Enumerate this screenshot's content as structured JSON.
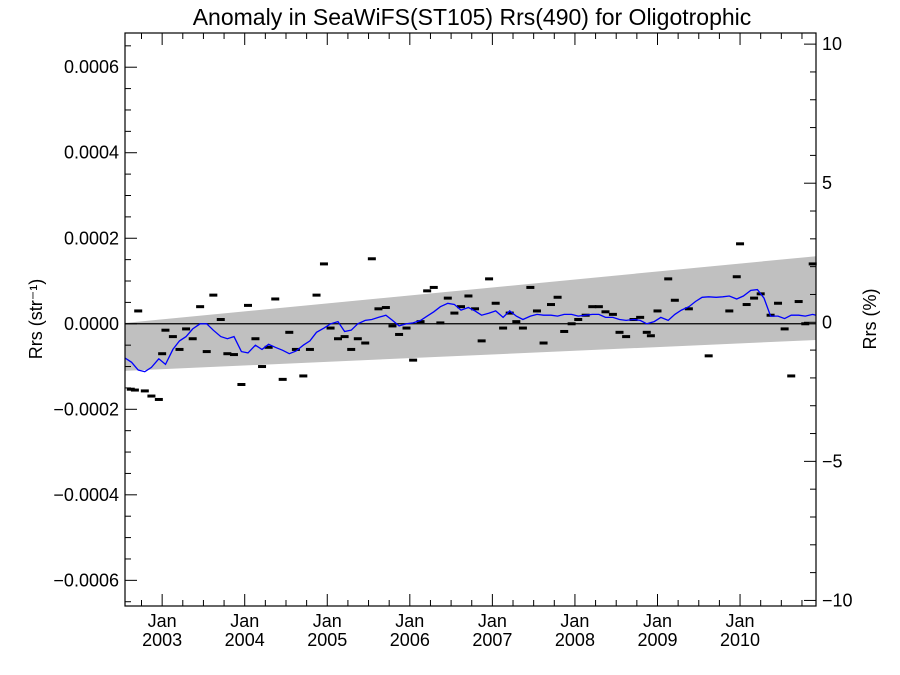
{
  "chart_data": {
    "type": "scatter",
    "title": "Anomaly in SeaWiFS(ST105) Rrs(490) for Oligotrophic",
    "ylabel_left": "Rrs (str⁻¹)",
    "ylabel_right": "Rrs (%)",
    "xlim": [
      2002.55,
      2010.92
    ],
    "ylim_left": [
      -0.00066,
      0.00068
    ],
    "ylim_right": [
      -10.2,
      10.4
    ],
    "x_ticks": [
      {
        "x": 2003.0,
        "top": "Jan",
        "bottom": "2003"
      },
      {
        "x": 2004.0,
        "top": "Jan",
        "bottom": "2004"
      },
      {
        "x": 2005.0,
        "top": "Jan",
        "bottom": "2005"
      },
      {
        "x": 2006.0,
        "top": "Jan",
        "bottom": "2006"
      },
      {
        "x": 2007.0,
        "top": "Jan",
        "bottom": "2007"
      },
      {
        "x": 2008.0,
        "top": "Jan",
        "bottom": "2008"
      },
      {
        "x": 2009.0,
        "top": "Jan",
        "bottom": "2009"
      },
      {
        "x": 2010.0,
        "top": "Jan",
        "bottom": "2010"
      }
    ],
    "y_ticks_left": [
      {
        "v": 0.0006,
        "label": "0.0006"
      },
      {
        "v": 0.0004,
        "label": "0.0004"
      },
      {
        "v": 0.0002,
        "label": "0.0002"
      },
      {
        "v": 0.0,
        "label": "0.0000"
      },
      {
        "v": -0.0002,
        "label": "−0.0002"
      },
      {
        "v": -0.0004,
        "label": "−0.0004"
      },
      {
        "v": -0.0006,
        "label": "−0.0006"
      }
    ],
    "y_ticks_right": [
      {
        "v": 10,
        "label": "10"
      },
      {
        "v": 5,
        "label": "5"
      },
      {
        "v": 0,
        "label": "0"
      },
      {
        "v": -5,
        "label": "−5"
      },
      {
        "v": -10,
        "label": "−10"
      }
    ],
    "confidence_band": {
      "x": [
        2002.55,
        2010.92
      ],
      "upper": [
        2e-06,
        0.000158
      ],
      "lower": [
        -0.00011,
        -3.8e-05
      ]
    },
    "zero_line": 0,
    "monthly_points": [
      [
        2002.62,
        -0.000153
      ],
      [
        2002.67,
        -0.000155
      ],
      [
        2002.71,
        3e-05
      ],
      [
        2002.79,
        -0.000157
      ],
      [
        2002.87,
        -0.000169
      ],
      [
        2002.96,
        -0.000177
      ],
      [
        2003.0,
        -7e-05
      ],
      [
        2003.04,
        -1.5e-05
      ],
      [
        2003.13,
        -3e-05
      ],
      [
        2003.21,
        -6e-05
      ],
      [
        2003.29,
        -1.2e-05
      ],
      [
        2003.37,
        -3.5e-05
      ],
      [
        2003.46,
        4e-05
      ],
      [
        2003.54,
        -6.5e-05
      ],
      [
        2003.62,
        6.7e-05
      ],
      [
        2003.71,
        1e-05
      ],
      [
        2003.79,
        -7e-05
      ],
      [
        2003.87,
        -7.2e-05
      ],
      [
        2003.96,
        -0.000142
      ],
      [
        2004.04,
        4.3e-05
      ],
      [
        2004.13,
        -3.5e-05
      ],
      [
        2004.21,
        -0.0001
      ],
      [
        2004.29,
        -5.5e-05
      ],
      [
        2004.37,
        5.8e-05
      ],
      [
        2004.46,
        -0.00013
      ],
      [
        2004.54,
        -2e-05
      ],
      [
        2004.62,
        -6e-05
      ],
      [
        2004.71,
        -0.000122
      ],
      [
        2004.79,
        -6e-05
      ],
      [
        2004.87,
        6.7e-05
      ],
      [
        2004.96,
        0.00014
      ],
      [
        2005.04,
        -1e-05
      ],
      [
        2005.13,
        -3.5e-05
      ],
      [
        2005.21,
        -3e-05
      ],
      [
        2005.29,
        -6e-05
      ],
      [
        2005.37,
        -3.5e-05
      ],
      [
        2005.46,
        -4.5e-05
      ],
      [
        2005.54,
        0.000152
      ],
      [
        2005.62,
        3.5e-05
      ],
      [
        2005.71,
        3.8e-05
      ],
      [
        2005.79,
        -5e-06
      ],
      [
        2005.87,
        -2.5e-05
      ],
      [
        2005.96,
        -1e-05
      ],
      [
        2006.04,
        -8.5e-05
      ],
      [
        2006.13,
        5e-06
      ],
      [
        2006.21,
        7.7e-05
      ],
      [
        2006.29,
        8.5e-05
      ],
      [
        2006.37,
        2e-06
      ],
      [
        2006.46,
        6e-05
      ],
      [
        2006.54,
        2.5e-05
      ],
      [
        2006.62,
        4e-05
      ],
      [
        2006.71,
        6.5e-05
      ],
      [
        2006.79,
        3.5e-05
      ],
      [
        2006.87,
        -4e-05
      ],
      [
        2006.96,
        0.000105
      ],
      [
        2007.04,
        4.8e-05
      ],
      [
        2007.13,
        -1e-05
      ],
      [
        2007.21,
        2.5e-05
      ],
      [
        2007.29,
        5e-06
      ],
      [
        2007.37,
        -1e-05
      ],
      [
        2007.46,
        8.5e-05
      ],
      [
        2007.54,
        3e-05
      ],
      [
        2007.62,
        -4.5e-05
      ],
      [
        2007.71,
        4.5e-05
      ],
      [
        2007.79,
        6.2e-05
      ],
      [
        2007.87,
        -1.8e-05
      ],
      [
        2007.96,
        0.0
      ],
      [
        2008.04,
        1e-05
      ],
      [
        2008.13,
        2e-05
      ],
      [
        2008.21,
        4e-05
      ],
      [
        2008.29,
        4e-05
      ],
      [
        2008.37,
        2.8e-05
      ],
      [
        2008.46,
        2.2e-05
      ],
      [
        2008.54,
        -2e-05
      ],
      [
        2008.62,
        -3e-05
      ],
      [
        2008.71,
        1e-05
      ],
      [
        2008.79,
        1.5e-05
      ],
      [
        2008.87,
        -2e-05
      ],
      [
        2008.92,
        -2.8e-05
      ],
      [
        2009.0,
        3e-05
      ],
      [
        2009.13,
        0.000105
      ],
      [
        2009.21,
        5.5e-05
      ],
      [
        2009.38,
        3.5e-05
      ],
      [
        2009.62,
        -7.5e-05
      ],
      [
        2009.87,
        3e-05
      ],
      [
        2009.96,
        0.00011
      ],
      [
        2010.0,
        0.000187
      ],
      [
        2010.08,
        4.5e-05
      ],
      [
        2010.17,
        6e-05
      ],
      [
        2010.25,
        7e-05
      ],
      [
        2010.37,
        2e-05
      ],
      [
        2010.46,
        4.8e-05
      ],
      [
        2010.54,
        -1.2e-05
      ],
      [
        2010.62,
        -0.000122
      ],
      [
        2010.71,
        5.2e-05
      ],
      [
        2010.79,
        0.0
      ],
      [
        2010.88,
        0.00014
      ]
    ],
    "running_mean": [
      [
        2002.55,
        -8e-05
      ],
      [
        2002.63,
        -9e-05
      ],
      [
        2002.71,
        -0.000108
      ],
      [
        2002.79,
        -0.000112
      ],
      [
        2002.87,
        -0.000102
      ],
      [
        2002.96,
        -8.2e-05
      ],
      [
        2003.04,
        -9.5e-05
      ],
      [
        2003.13,
        -6e-05
      ],
      [
        2003.21,
        -4e-05
      ],
      [
        2003.29,
        -3e-05
      ],
      [
        2003.37,
        -1.2e-05
      ],
      [
        2003.46,
        0.0
      ],
      [
        2003.54,
        0.0
      ],
      [
        2003.62,
        -1.5e-05
      ],
      [
        2003.71,
        -3e-05
      ],
      [
        2003.79,
        -3.5e-05
      ],
      [
        2003.87,
        -3e-05
      ],
      [
        2003.96,
        -6.5e-05
      ],
      [
        2004.04,
        -6.8e-05
      ],
      [
        2004.13,
        -5e-05
      ],
      [
        2004.21,
        -6e-05
      ],
      [
        2004.29,
        -4.8e-05
      ],
      [
        2004.37,
        -5.5e-05
      ],
      [
        2004.46,
        -6.2e-05
      ],
      [
        2004.54,
        -7e-05
      ],
      [
        2004.62,
        -6.4e-05
      ],
      [
        2004.71,
        -5e-05
      ],
      [
        2004.79,
        -4e-05
      ],
      [
        2004.87,
        -2e-05
      ],
      [
        2004.96,
        -1e-05
      ],
      [
        2005.04,
        0.0
      ],
      [
        2005.13,
        5e-06
      ],
      [
        2005.21,
        -1.8e-05
      ],
      [
        2005.29,
        -1.5e-05
      ],
      [
        2005.37,
        0.0
      ],
      [
        2005.46,
        8e-06
      ],
      [
        2005.54,
        1e-05
      ],
      [
        2005.62,
        1.5e-05
      ],
      [
        2005.71,
        2e-05
      ],
      [
        2005.79,
        8e-06
      ],
      [
        2005.87,
        -5e-06
      ],
      [
        2005.96,
        0.0
      ],
      [
        2006.04,
        2e-06
      ],
      [
        2006.13,
        8e-06
      ],
      [
        2006.21,
        1.8e-05
      ],
      [
        2006.29,
        2.8e-05
      ],
      [
        2006.37,
        4e-05
      ],
      [
        2006.46,
        4.8e-05
      ],
      [
        2006.54,
        4.5e-05
      ],
      [
        2006.62,
        3.2e-05
      ],
      [
        2006.71,
        3.8e-05
      ],
      [
        2006.79,
        3e-05
      ],
      [
        2006.87,
        2e-05
      ],
      [
        2006.96,
        2.5e-05
      ],
      [
        2007.04,
        3e-05
      ],
      [
        2007.13,
        1.5e-05
      ],
      [
        2007.21,
        3e-05
      ],
      [
        2007.29,
        1.8e-05
      ],
      [
        2007.37,
        1e-05
      ],
      [
        2007.46,
        1.8e-05
      ],
      [
        2007.54,
        2.2e-05
      ],
      [
        2007.62,
        2e-05
      ],
      [
        2007.71,
        2e-05
      ],
      [
        2007.79,
        1.8e-05
      ],
      [
        2007.87,
        2.2e-05
      ],
      [
        2007.96,
        2.2e-05
      ],
      [
        2008.04,
        1.8e-05
      ],
      [
        2008.13,
        2e-05
      ],
      [
        2008.21,
        2.2e-05
      ],
      [
        2008.29,
        2.2e-05
      ],
      [
        2008.37,
        1.5e-05
      ],
      [
        2008.46,
        1.5e-05
      ],
      [
        2008.54,
        1e-05
      ],
      [
        2008.62,
        8e-06
      ],
      [
        2008.71,
        1e-05
      ],
      [
        2008.79,
        8e-06
      ],
      [
        2008.87,
        0.0
      ],
      [
        2008.96,
        5e-06
      ],
      [
        2009.04,
        1.5e-05
      ],
      [
        2009.13,
        8e-06
      ],
      [
        2009.21,
        2.2e-05
      ],
      [
        2009.29,
        3.2e-05
      ],
      [
        2009.38,
        4e-05
      ],
      [
        2009.46,
        5.2e-05
      ],
      [
        2009.54,
        6.2e-05
      ],
      [
        2009.62,
        6.3e-05
      ],
      [
        2009.71,
        6.2e-05
      ],
      [
        2009.79,
        6.3e-05
      ],
      [
        2009.87,
        6.5e-05
      ],
      [
        2009.96,
        5.8e-05
      ],
      [
        2010.04,
        6.5e-05
      ],
      [
        2010.13,
        7.8e-05
      ],
      [
        2010.21,
        8e-05
      ],
      [
        2010.29,
        6e-05
      ],
      [
        2010.37,
        1.8e-05
      ],
      [
        2010.46,
        1.8e-05
      ],
      [
        2010.54,
        1.2e-05
      ],
      [
        2010.62,
        2e-05
      ],
      [
        2010.71,
        2e-05
      ],
      [
        2010.79,
        1.8e-05
      ],
      [
        2010.88,
        2.2e-05
      ],
      [
        2010.92,
        2e-05
      ]
    ],
    "colors": {
      "band": "#c0c0c0",
      "running_mean": "#0000ff",
      "points": "#000000",
      "axes": "#000000"
    }
  }
}
